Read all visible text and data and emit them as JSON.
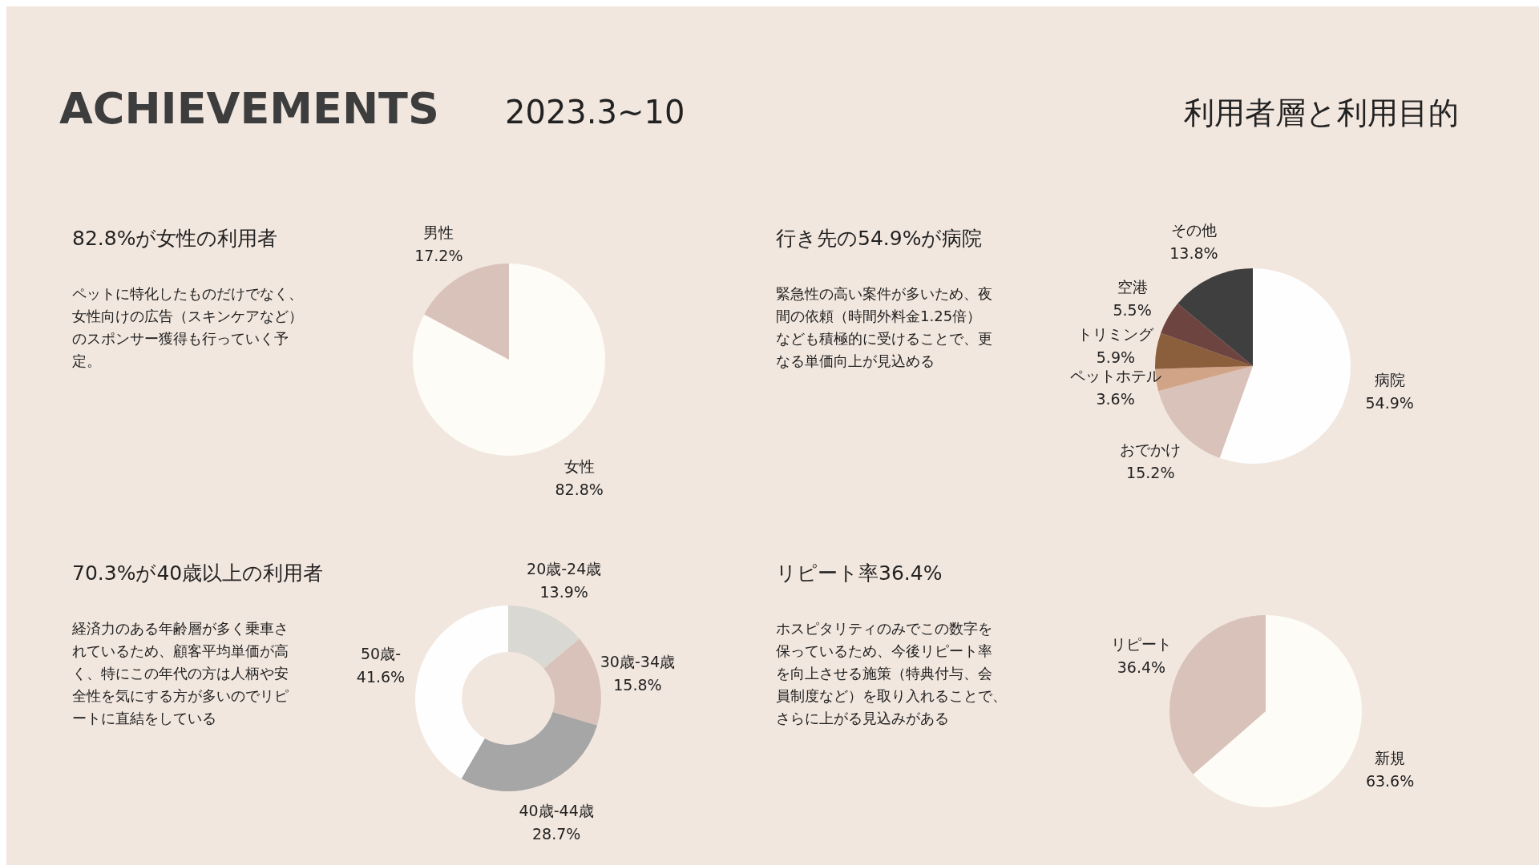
{
  "chart_data": [
    {
      "type": "other",
      "title": "ACHIEVEMENTS",
      "subtitle": "2023.3~10",
      "annotations": [
        "利用者層と利用目的"
      ]
    },
    {
      "type": "pie",
      "title": "82.8%が女性の利用者",
      "annotations": [
        "ペットに特化したものだけでなく、女性向けの広告（スキンケアなど）のスポンサー獲得も行っていく予定。"
      ],
      "categories": [
        "女性",
        "男性"
      ],
      "values": [
        82.8,
        17.2
      ],
      "value_labels": [
        "82.8%",
        "17.2%"
      ],
      "colors": [
        "#fdfcf6",
        "#d9c2ba"
      ]
    },
    {
      "type": "pie",
      "title": "行き先の54.9%が病院",
      "annotations": [
        "緊急性の高い案件が多いため、夜間の依頼（時間外料金1.25倍）なども積極的に受けることで、更なる単価向上が見込める"
      ],
      "categories": [
        "病院",
        "おでかけ",
        "ペットホテル",
        "トリミング",
        "空港",
        "その他"
      ],
      "values": [
        54.9,
        15.2,
        3.6,
        5.9,
        5.5,
        13.8
      ],
      "value_labels": [
        "54.9%",
        "15.2%",
        "3.6%",
        "5.9%",
        "5.5%",
        "13.8%"
      ],
      "colors": [
        "#fefefe",
        "#d9c2ba",
        "#d2a487",
        "#8b5e3c",
        "#6d443f",
        "#3f3f3f"
      ]
    },
    {
      "type": "donut",
      "title": "70.3%が40歳以上の利用者",
      "annotations": [
        "経済力のある年齢層が多く乗車されているため、顧客平均単価が高く、特にこの年代の方は人柄や安全性を気にする方が多いのでリピートに直結をしている"
      ],
      "categories": [
        "20歳-24歳",
        "30歳-34歳",
        "40歳-44歳",
        "50歳-"
      ],
      "values": [
        13.9,
        15.8,
        28.7,
        41.6
      ],
      "value_labels": [
        "13.9%",
        "15.8%",
        "28.7%",
        "41.6%"
      ],
      "colors": [
        "#d9d8d2",
        "#d9c2ba",
        "#a6a6a6",
        "#fefefe"
      ]
    },
    {
      "type": "pie",
      "title": "リピート率36.4%",
      "annotations": [
        "ホスピタリティのみでこの数字を保っているため、今後リピート率を向上させる施策（特典付与、会員制度など）を取り入れることで、さらに上がる見込みがある"
      ],
      "categories": [
        "新規",
        "リピート"
      ],
      "values": [
        63.6,
        36.4
      ],
      "value_labels": [
        "63.6%",
        "36.4%"
      ],
      "colors": [
        "#fdfcf6",
        "#d9c2ba"
      ]
    }
  ]
}
